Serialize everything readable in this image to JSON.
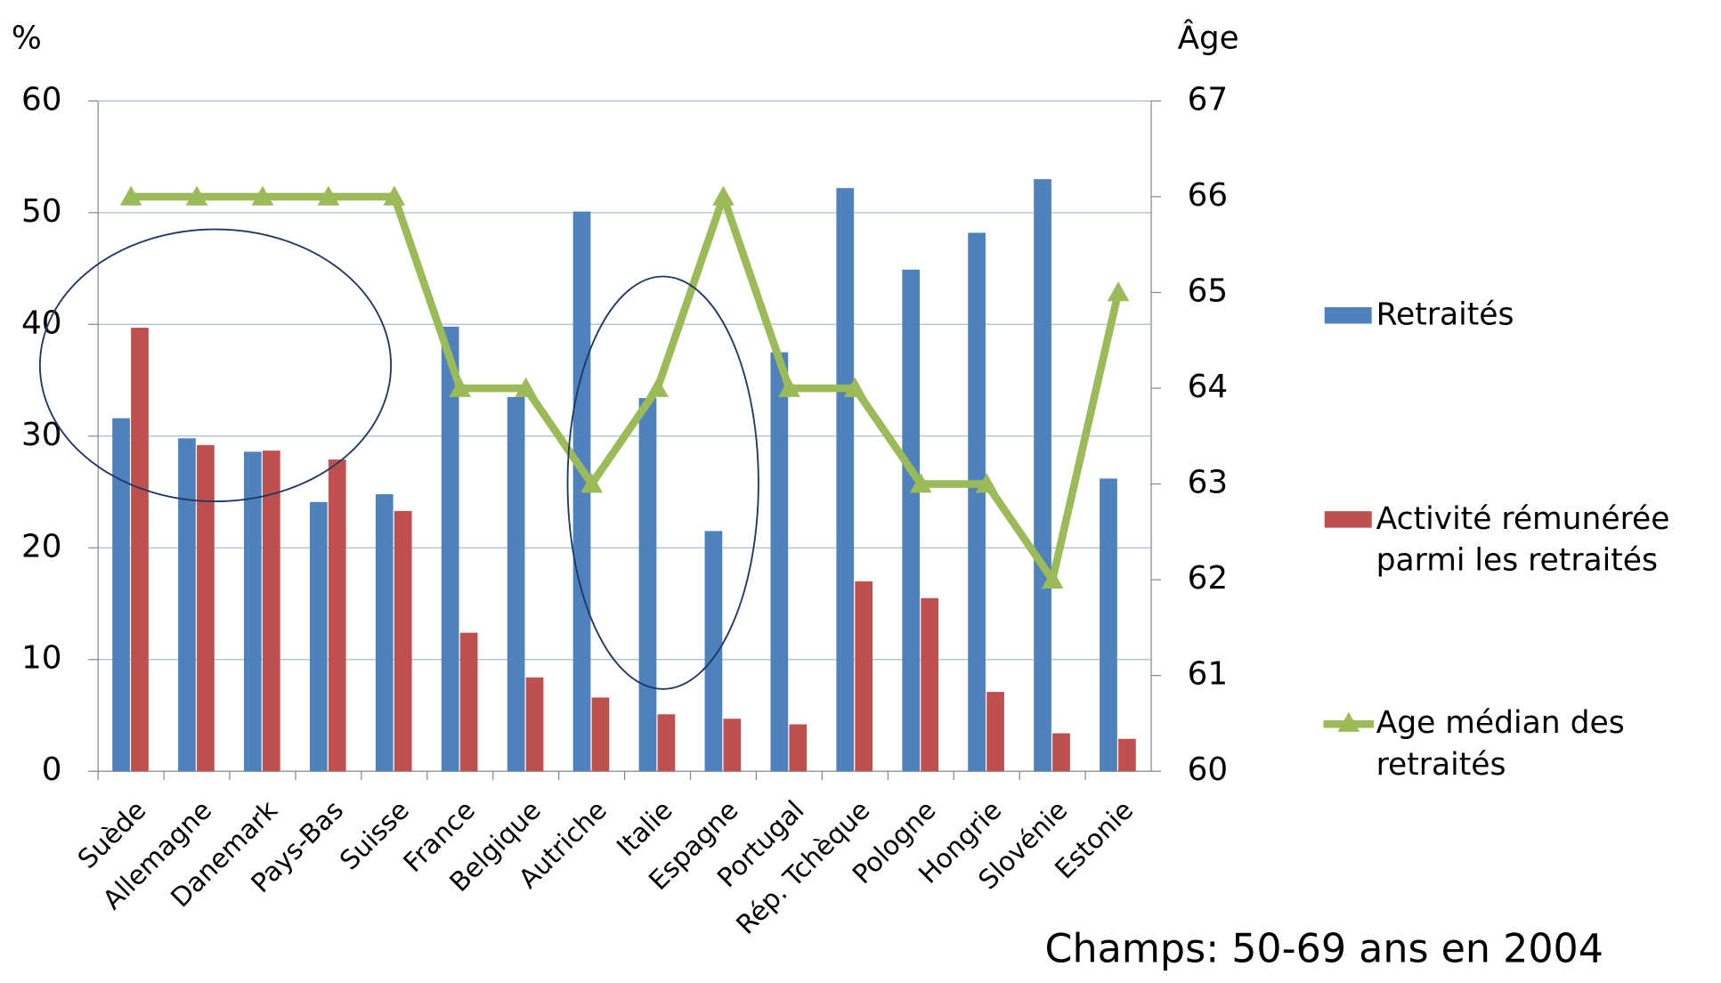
{
  "chart_data": {
    "type": "bar_line",
    "y_label": "%",
    "y2_label": "Âge",
    "annotation": "Champs: 50-69 ans en 2004",
    "categories": [
      "Suède",
      "Allemagne",
      "Danemark",
      "Pays-Bas",
      "Suisse",
      "France",
      "Belgique",
      "Autriche",
      "Italie",
      "Espagne",
      "Portugal",
      "Rép. Tchèque",
      "Pologne",
      "Hongrie",
      "Slovénie",
      "Estonie"
    ],
    "series": [
      {
        "name": "Retraités",
        "type": "bar",
        "color": "#4f81bd",
        "values": [
          31.6,
          29.8,
          28.6,
          24.1,
          24.8,
          39.8,
          33.5,
          50.1,
          33.4,
          21.5,
          37.5,
          52.2,
          44.9,
          48.2,
          53.0,
          26.2
        ]
      },
      {
        "name": "Activité rémunérée parmi les retraités",
        "type": "bar",
        "color": "#c0504d",
        "values": [
          39.7,
          29.2,
          28.7,
          27.9,
          23.3,
          12.4,
          8.4,
          6.6,
          5.1,
          4.7,
          4.2,
          17.0,
          15.5,
          7.1,
          3.4,
          2.9
        ]
      },
      {
        "name": "Age médian des retraités",
        "type": "line",
        "axis": "y2",
        "color": "#9bbb59",
        "values": [
          66,
          66,
          66,
          66,
          66,
          64,
          64,
          63,
          64,
          66,
          64,
          64,
          63,
          63,
          62,
          65
        ]
      }
    ],
    "ylim": [
      0,
      60
    ],
    "yticks": [
      0,
      10,
      20,
      30,
      40,
      50,
      60
    ],
    "y2lim": [
      60,
      67
    ],
    "y2ticks": [
      60,
      61,
      62,
      63,
      64,
      65,
      66,
      67
    ],
    "grid": true,
    "legend": "right"
  }
}
